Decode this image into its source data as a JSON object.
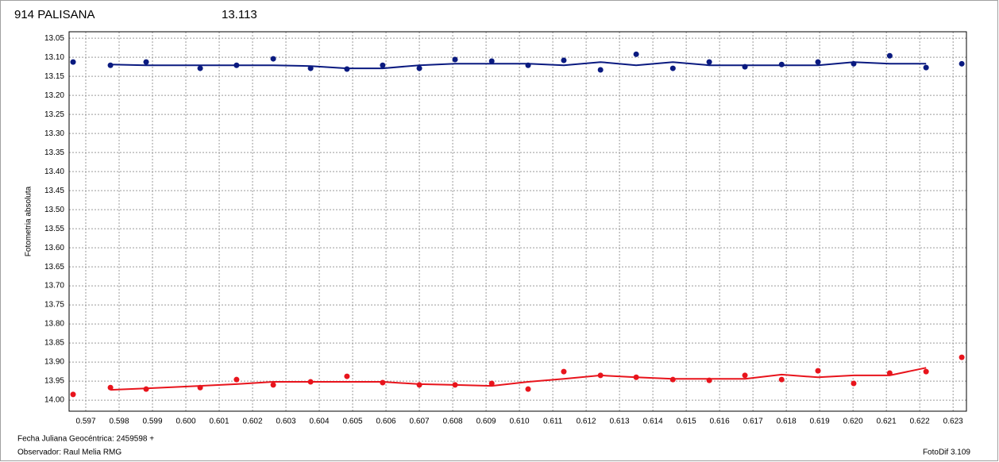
{
  "chart_data": {
    "type": "scatter",
    "title": "914 PALISANA",
    "subtitle": "13.113",
    "title_color": "#e8141c",
    "subtitle_color": "#0a1a80",
    "ylabel": "Fotometria absoluta",
    "xlabel": "Fecha Juliana Geocéntrica: 2459598 +",
    "observer": "Observador: Raul Melia RMG",
    "software": "FotoDif 3.109",
    "y_inverted": true,
    "grid": true,
    "xlim": [
      0.5965,
      0.6234
    ],
    "ylim": [
      13.033,
      14.029
    ],
    "xticks": [
      0.597,
      0.598,
      0.599,
      {
        "value": 0.6,
        "label": "0.600"
      },
      0.601,
      0.602,
      0.603,
      0.604,
      0.605,
      0.606,
      0.607,
      0.608,
      0.609,
      {
        "value": 0.61,
        "label": "0.610"
      },
      0.611,
      0.612,
      0.613,
      0.614,
      0.615,
      0.616,
      0.617,
      0.618,
      0.619,
      {
        "value": 0.62,
        "label": "0.620"
      },
      0.621,
      0.622,
      0.623
    ],
    "yticks": [
      13.05,
      {
        "value": 13.1,
        "label": "13.10"
      },
      13.15,
      {
        "value": 13.2,
        "label": "13.20"
      },
      13.25,
      {
        "value": 13.3,
        "label": "13.30"
      },
      13.35,
      {
        "value": 13.4,
        "label": "13.40"
      },
      13.45,
      {
        "value": 13.5,
        "label": "13.50"
      },
      13.55,
      {
        "value": 13.6,
        "label": "13.60"
      },
      13.65,
      {
        "value": 13.7,
        "label": "13.70"
      },
      13.75,
      {
        "value": 13.8,
        "label": "13.80"
      },
      13.85,
      {
        "value": 13.9,
        "label": "13.90"
      },
      13.95,
      {
        "value": 14.0,
        "label": "14.00"
      }
    ],
    "series": [
      {
        "color": "#0a1a80",
        "style": "points",
        "x": [
          0.59662,
          0.59774,
          0.59881,
          0.60043,
          0.60152,
          0.60262,
          0.60374,
          0.60483,
          0.6059,
          0.607,
          0.60807,
          0.60917,
          0.61026,
          0.61133,
          0.61243,
          0.6135,
          0.6146,
          0.61569,
          0.61676,
          0.61786,
          0.61895,
          0.62002,
          0.6211,
          0.62219,
          0.62326
        ],
        "values": [
          13.1125,
          13.121,
          13.1125,
          13.129,
          13.121,
          13.104,
          13.129,
          13.131,
          13.121,
          13.129,
          13.106,
          13.11,
          13.121,
          13.108,
          13.133,
          13.092,
          13.129,
          13.1125,
          13.125,
          13.119,
          13.1125,
          13.117,
          13.096,
          13.127,
          13.117
        ]
      },
      {
        "color": "#0a1a80",
        "style": "line",
        "x": [
          0.59774,
          0.59881,
          0.60043,
          0.60152,
          0.60262,
          0.60374,
          0.60483,
          0.6059,
          0.607,
          0.60807,
          0.60917,
          0.61026,
          0.61133,
          0.61243,
          0.6135,
          0.6146,
          0.61569,
          0.61676,
          0.61786,
          0.61895,
          0.62002,
          0.6211,
          0.62219
        ],
        "values": [
          13.119,
          13.121,
          13.121,
          13.121,
          13.121,
          13.123,
          13.129,
          13.129,
          13.121,
          13.117,
          13.117,
          13.117,
          13.121,
          13.1125,
          13.121,
          13.1125,
          13.121,
          13.121,
          13.121,
          13.121,
          13.1125,
          13.117,
          13.117
        ]
      },
      {
        "color": "#e8141c",
        "style": "points",
        "x": [
          0.59662,
          0.59774,
          0.59881,
          0.60043,
          0.60152,
          0.60262,
          0.60374,
          0.60483,
          0.6059,
          0.607,
          0.60807,
          0.60917,
          0.61026,
          0.61133,
          0.61243,
          0.6135,
          0.6146,
          0.61569,
          0.61676,
          0.61786,
          0.61895,
          0.62002,
          0.6211,
          0.62219,
          0.62326
        ],
        "values": [
          13.985,
          13.967,
          13.971,
          13.967,
          13.946,
          13.96,
          13.952,
          13.9375,
          13.954,
          13.96,
          13.96,
          13.956,
          13.971,
          13.925,
          13.935,
          13.94,
          13.946,
          13.948,
          13.935,
          13.946,
          13.923,
          13.956,
          13.929,
          13.925,
          13.8875
        ]
      },
      {
        "color": "#e8141c",
        "style": "line",
        "x": [
          0.59774,
          0.59881,
          0.60043,
          0.60152,
          0.60262,
          0.60374,
          0.60483,
          0.6059,
          0.607,
          0.60807,
          0.60917,
          0.61026,
          0.61133,
          0.61243,
          0.6135,
          0.6146,
          0.61569,
          0.61676,
          0.61786,
          0.61895,
          0.62002,
          0.6211,
          0.62219
        ],
        "values": [
          13.973,
          13.969,
          13.9625,
          13.958,
          13.952,
          13.952,
          13.952,
          13.952,
          13.958,
          13.96,
          13.9625,
          13.952,
          13.944,
          13.935,
          13.94,
          13.944,
          13.944,
          13.944,
          13.933,
          13.94,
          13.935,
          13.935,
          13.915
        ]
      }
    ]
  }
}
